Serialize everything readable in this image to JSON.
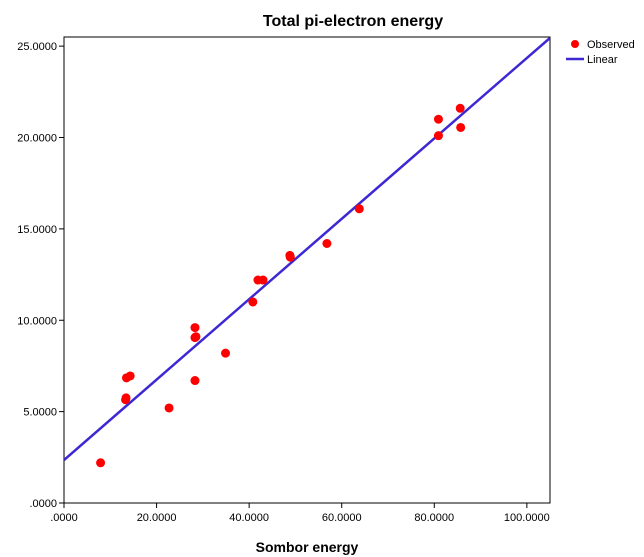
{
  "chart_data": {
    "type": "scatter",
    "title": "Total pi-electron energy",
    "xlabel": "Sombor energy",
    "ylabel": "",
    "xlim": [
      0,
      105
    ],
    "ylim": [
      0,
      25.5
    ],
    "xticks": [
      0,
      20,
      40,
      60,
      80,
      100
    ],
    "xtick_labels": [
      ".0000",
      "20.0000",
      "40.0000",
      "60.0000",
      "80.0000",
      "100.0000"
    ],
    "yticks": [
      0,
      5,
      10,
      15,
      20,
      25
    ],
    "ytick_labels": [
      ".0000",
      "5.0000",
      "10.0000",
      "15.0000",
      "20.0000",
      "25.0000"
    ],
    "grid": false,
    "legend_position": "top-right",
    "series": [
      {
        "name": "Observed",
        "type": "scatter",
        "color": "#ff0000",
        "points": [
          [
            7.9,
            2.2
          ],
          [
            13.3,
            5.65
          ],
          [
            13.4,
            5.75
          ],
          [
            13.5,
            6.85
          ],
          [
            14.3,
            6.95
          ],
          [
            22.7,
            5.2
          ],
          [
            28.3,
            9.6
          ],
          [
            28.3,
            9.05
          ],
          [
            28.5,
            9.1
          ],
          [
            28.3,
            6.7
          ],
          [
            34.9,
            8.2
          ],
          [
            40.8,
            11.0
          ],
          [
            41.9,
            12.2
          ],
          [
            43.0,
            12.2
          ],
          [
            48.8,
            13.55
          ],
          [
            48.9,
            13.45
          ],
          [
            56.8,
            14.2
          ],
          [
            63.8,
            16.1
          ],
          [
            80.9,
            21.0
          ],
          [
            80.9,
            20.1
          ],
          [
            85.6,
            21.6
          ],
          [
            85.7,
            20.55
          ]
        ]
      },
      {
        "name": "Linear",
        "type": "line",
        "color": "#3e28d4",
        "intercept": 2.35,
        "slope": 0.22
      }
    ]
  }
}
